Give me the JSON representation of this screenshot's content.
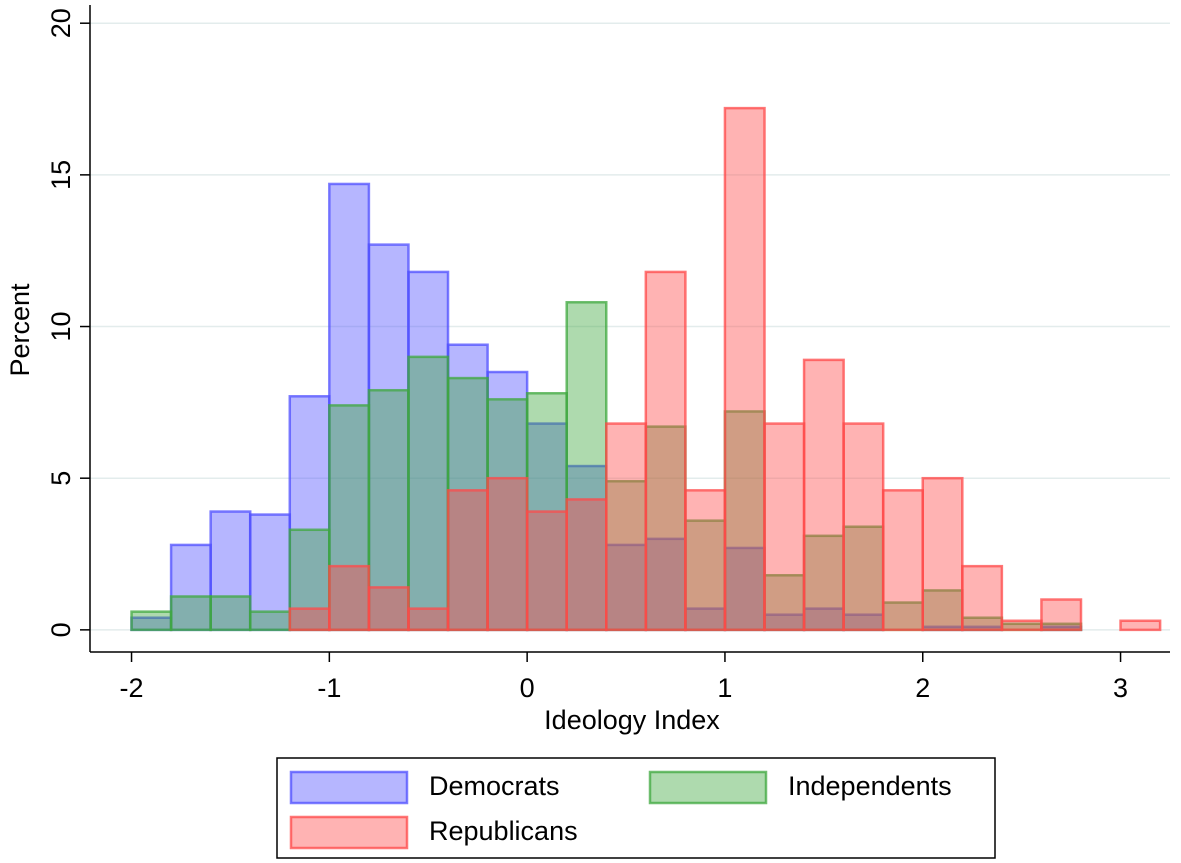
{
  "chart_data": {
    "type": "histogram",
    "xlabel": "Ideology Index",
    "ylabel": "Percent",
    "bins": [
      -2,
      -1.8,
      -1.6,
      -1.4,
      -1.2,
      -1,
      -0.8,
      -0.6,
      -0.4,
      -0.2,
      0,
      0.2,
      0.4,
      0.6,
      0.8,
      1,
      1.2,
      1.4,
      1.6,
      1.8,
      2,
      2.2,
      2.4,
      2.6,
      2.8,
      3,
      3.2
    ],
    "series": [
      {
        "name": "Democrats",
        "color": "#5050ff",
        "values": [
          0.4,
          2.8,
          3.9,
          3.8,
          7.7,
          14.7,
          12.7,
          11.8,
          9.4,
          8.5,
          6.8,
          5.4,
          2.8,
          3.0,
          0.7,
          2.7,
          0.5,
          0.7,
          0.5,
          0,
          0.1,
          0.1,
          0,
          0.1,
          0,
          0
        ]
      },
      {
        "name": "Independents",
        "color": "#3fa83f",
        "values": [
          0.6,
          1.1,
          1.1,
          0.6,
          3.3,
          7.4,
          7.9,
          9.0,
          8.3,
          7.6,
          7.8,
          10.8,
          4.9,
          6.7,
          3.6,
          7.2,
          1.8,
          3.1,
          3.4,
          0.9,
          1.3,
          0.4,
          0.2,
          0.2,
          0,
          0
        ]
      },
      {
        "name": "Republicans",
        "color": "#ff4a4a",
        "values": [
          0,
          0,
          0,
          0,
          0.7,
          2.1,
          1.4,
          0.7,
          4.6,
          5.0,
          3.9,
          4.3,
          6.8,
          11.8,
          4.6,
          17.2,
          6.8,
          8.9,
          6.8,
          4.6,
          5.0,
          2.1,
          0.3,
          1.0,
          0,
          0.3
        ]
      }
    ],
    "xlim": [
      -2.21,
      3.25
    ],
    "xticks": [
      -2,
      -1,
      0,
      1,
      2,
      3
    ],
    "ylim": [
      -0.73,
      20.6
    ],
    "yticks": [
      0,
      5,
      10,
      15,
      20
    ],
    "grid": true,
    "legend_position": "bottom"
  }
}
